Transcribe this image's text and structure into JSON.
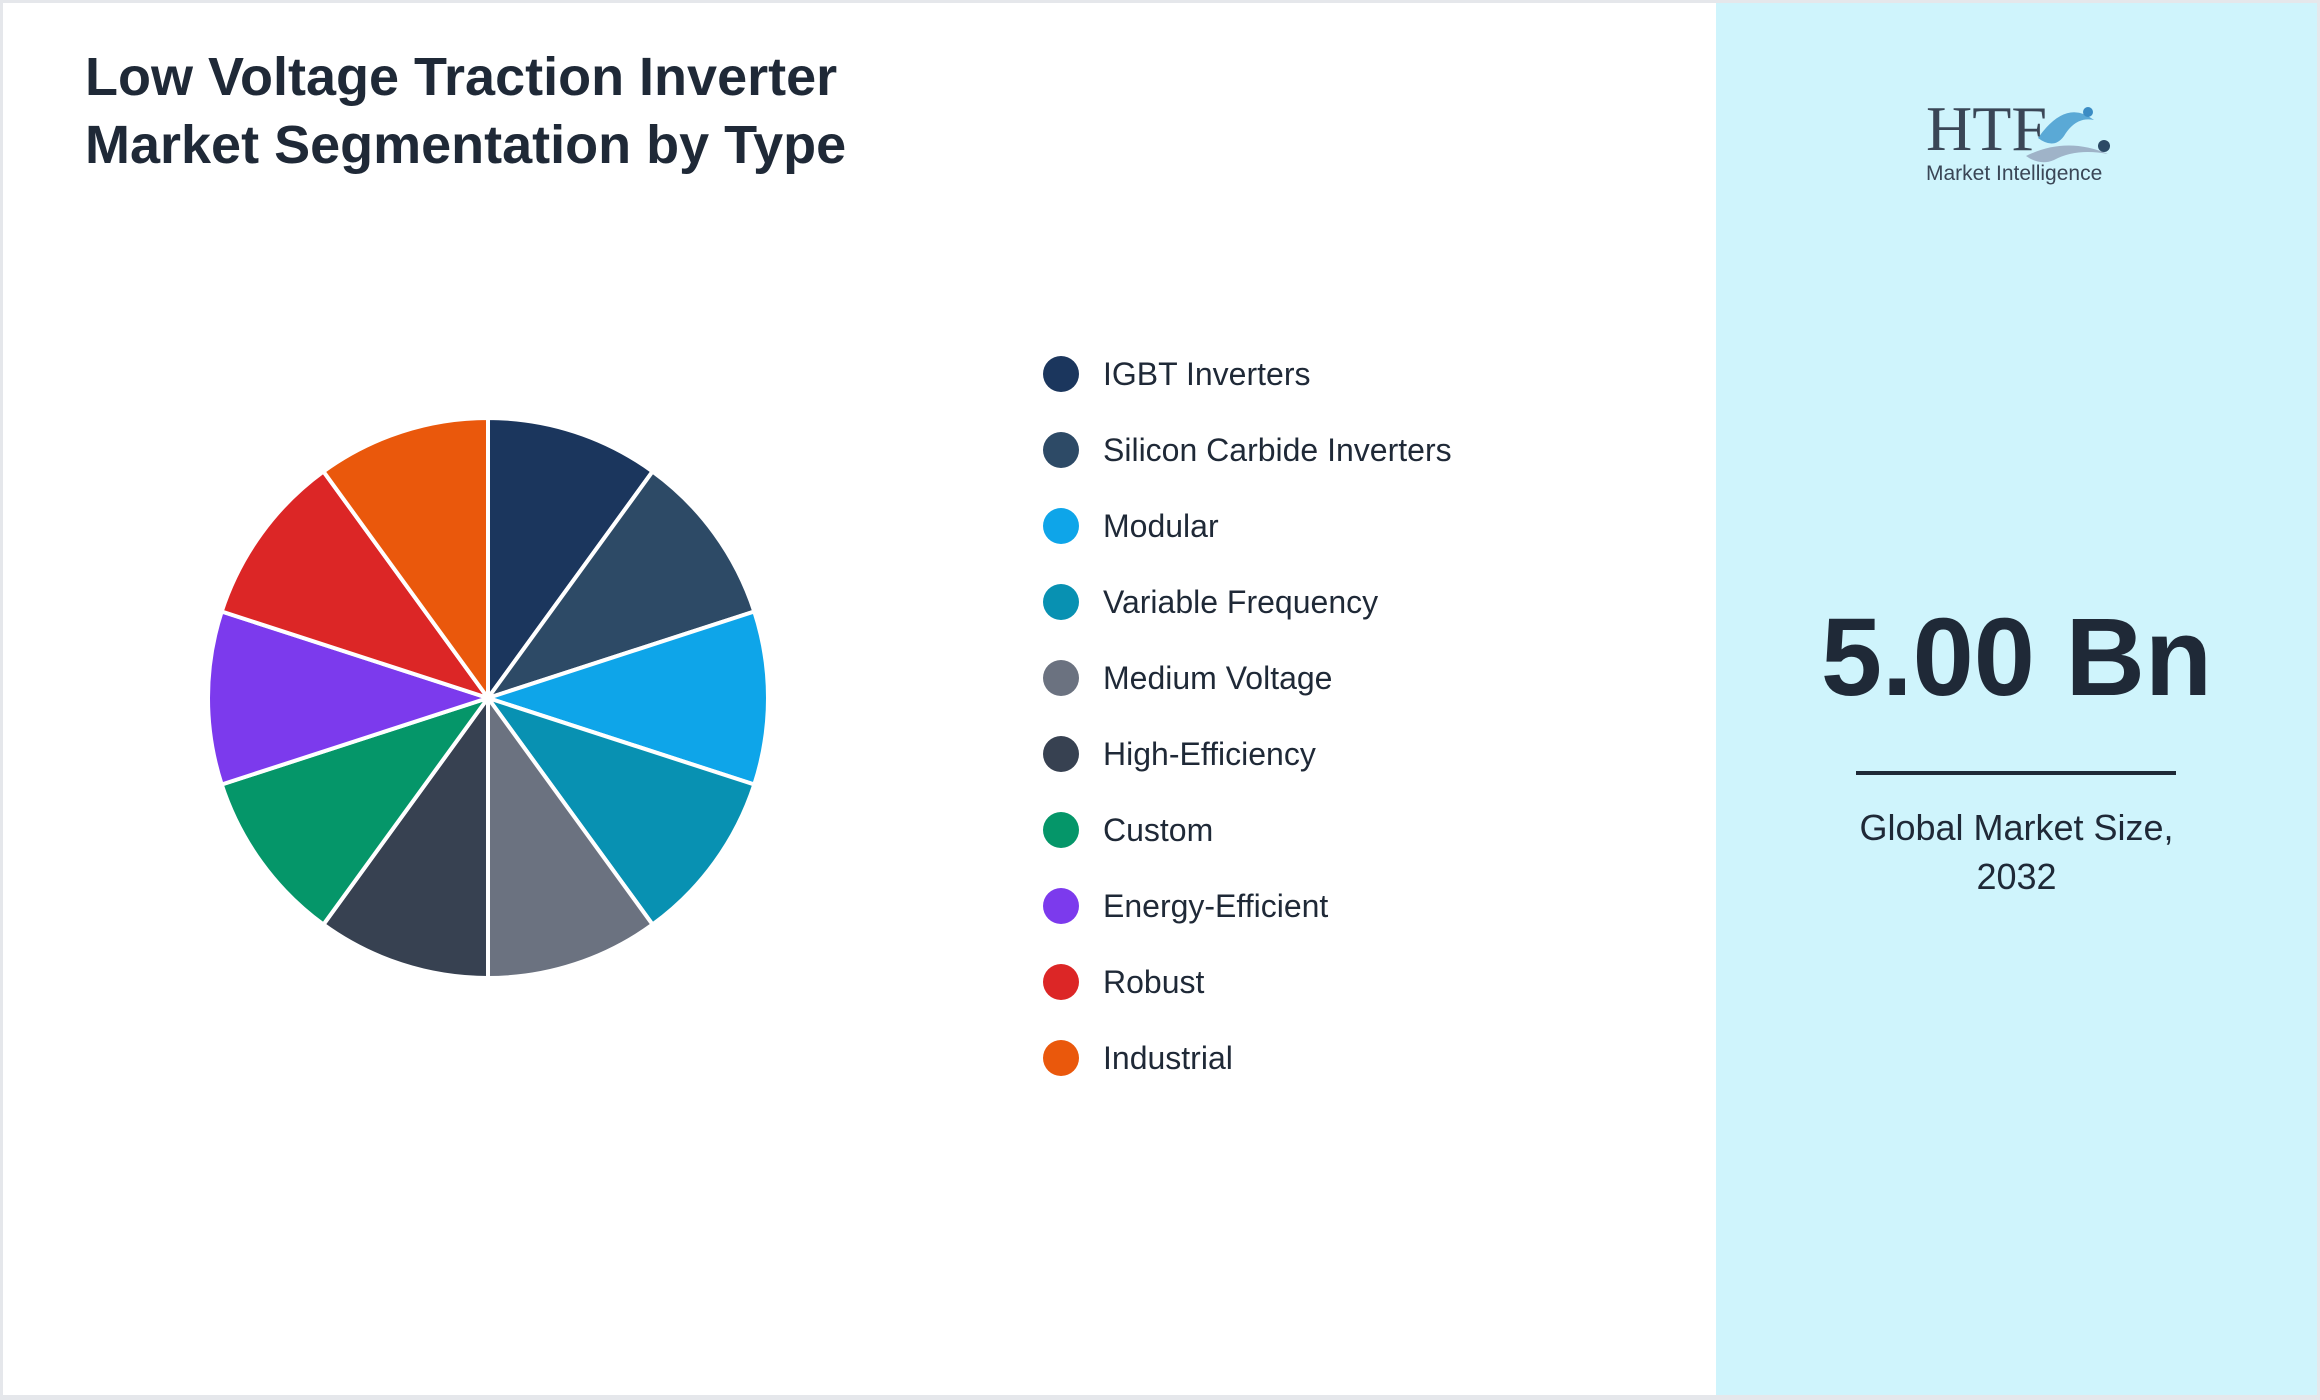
{
  "title_lines": [
    "Low Voltage Traction Inverter",
    "Market Segmentation by Type"
  ],
  "chart_data": {
    "type": "pie",
    "title": "Low Voltage Traction Inverter Market Segmentation by Type",
    "categories": [
      "IGBT Inverters",
      "Silicon Carbide Inverters",
      "Modular",
      "Variable Frequency",
      "Medium Voltage",
      "High-Efficiency",
      "Custom",
      "Energy-Efficient",
      "Robust",
      "Industrial"
    ],
    "values": [
      10,
      10,
      10,
      10,
      10,
      10,
      10,
      10,
      10,
      10
    ],
    "colors": [
      "#1b365d",
      "#2d4a66",
      "#0ea5e9",
      "#0891b2",
      "#6b7280",
      "#374151",
      "#059669",
      "#7c3aed",
      "#dc2626",
      "#ea580c"
    ],
    "legend_position": "right"
  },
  "side_panel": {
    "logo": {
      "mark": "HTF",
      "subtitle": "Market Intelligence",
      "icon": "htf-logo-icon"
    },
    "metric_value": "5.00 Bn",
    "caption_lines": [
      "Global Market Size,",
      "2032"
    ],
    "background": "#cff4fc"
  }
}
